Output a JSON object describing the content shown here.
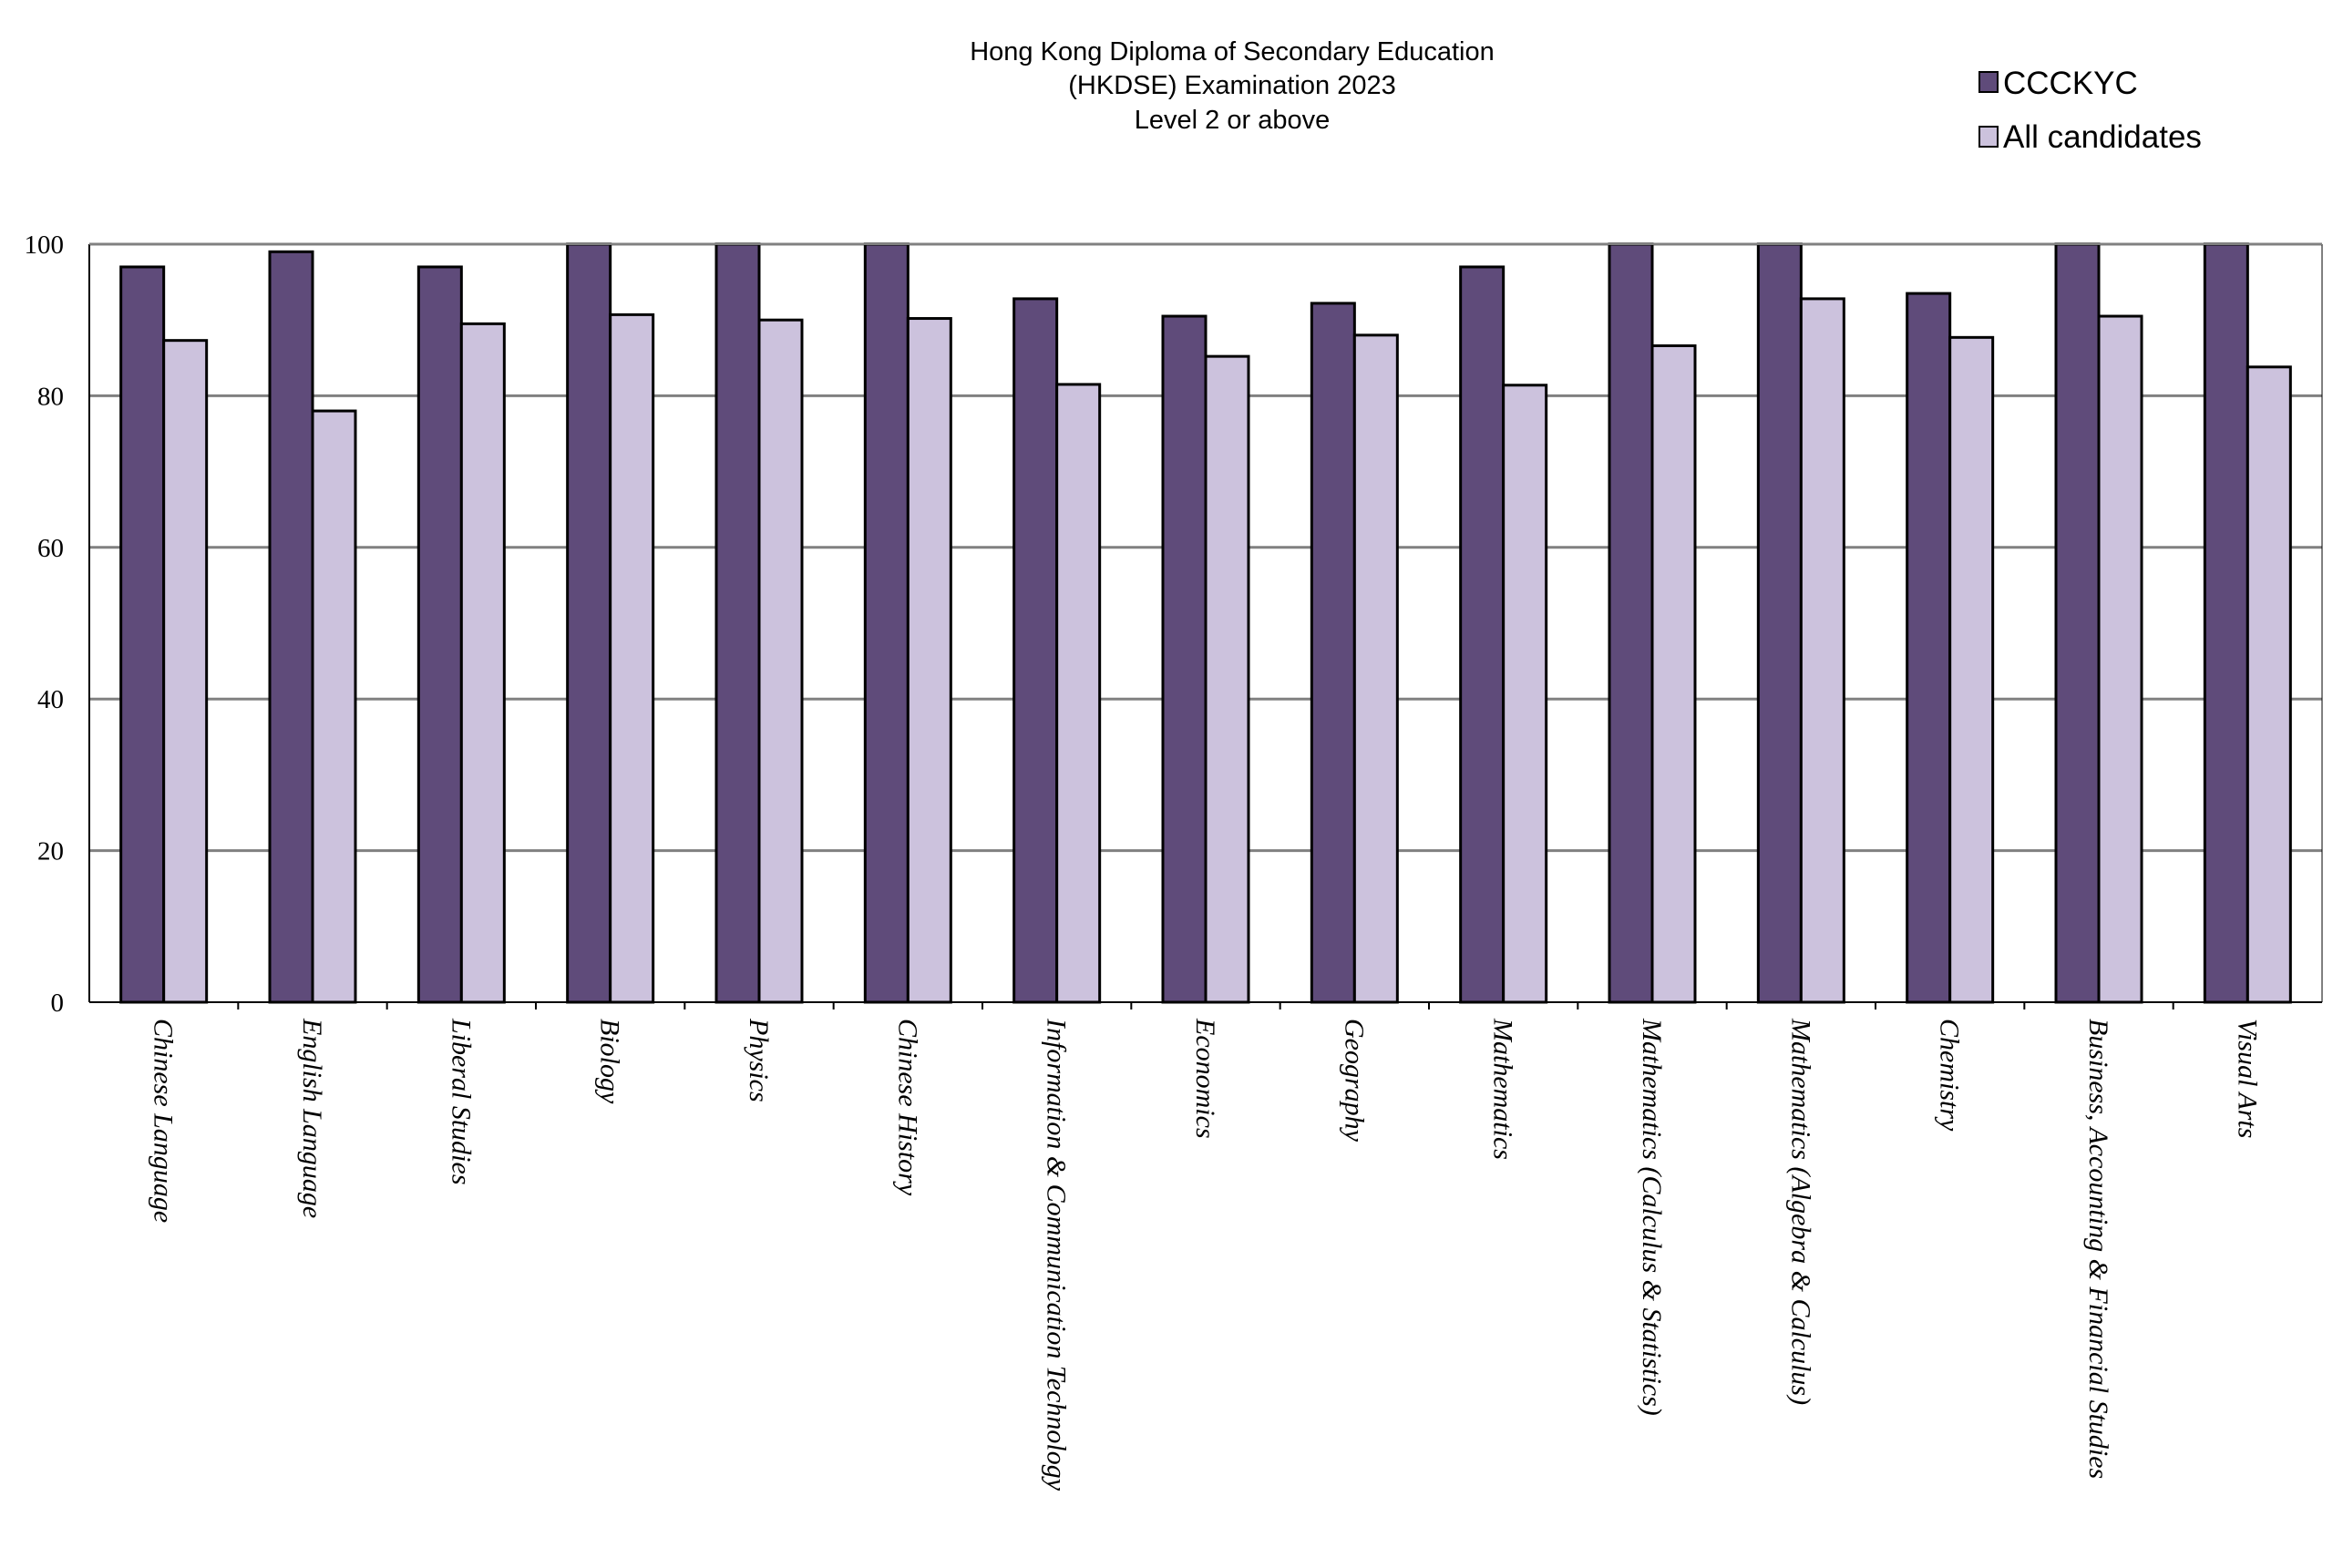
{
  "chart_data": {
    "type": "bar",
    "title": [
      "Hong Kong Diploma of Secondary Education",
      "(HKDSE) Examination 2023",
      "Level 2 or above"
    ],
    "categories": [
      "Chinese Language",
      "English Language",
      "Liberal Studies",
      "Biology",
      "Physics",
      "Chinese History",
      "Information & Communication Technology",
      "Economics",
      "Geography",
      "Mathematics",
      "Mathematics (Calculus & Statistics)",
      "Mathematics (Algebra & Calculus)",
      "Chemistry",
      "Business, Accounting & Financial Studies",
      "Visual Arts"
    ],
    "series": [
      {
        "name": "CCCKYC",
        "color": "#5f4b7a",
        "values": [
          97,
          99,
          97,
          100,
          100,
          100,
          92.8,
          90.5,
          92.2,
          97,
          100,
          100,
          93.5,
          100,
          100
        ]
      },
      {
        "name": "All candidates",
        "color": "#ccc2dd",
        "values": [
          87.3,
          78,
          89.5,
          90.7,
          90,
          90.2,
          81.5,
          85.2,
          88,
          81.4,
          86.6,
          92.8,
          87.7,
          90.5,
          83.8
        ]
      }
    ],
    "ylim": [
      0,
      100
    ],
    "yticks": [
      0,
      20,
      40,
      60,
      80,
      100
    ],
    "grid": true,
    "legend_position": "top-right",
    "xlabel": "",
    "ylabel": ""
  }
}
